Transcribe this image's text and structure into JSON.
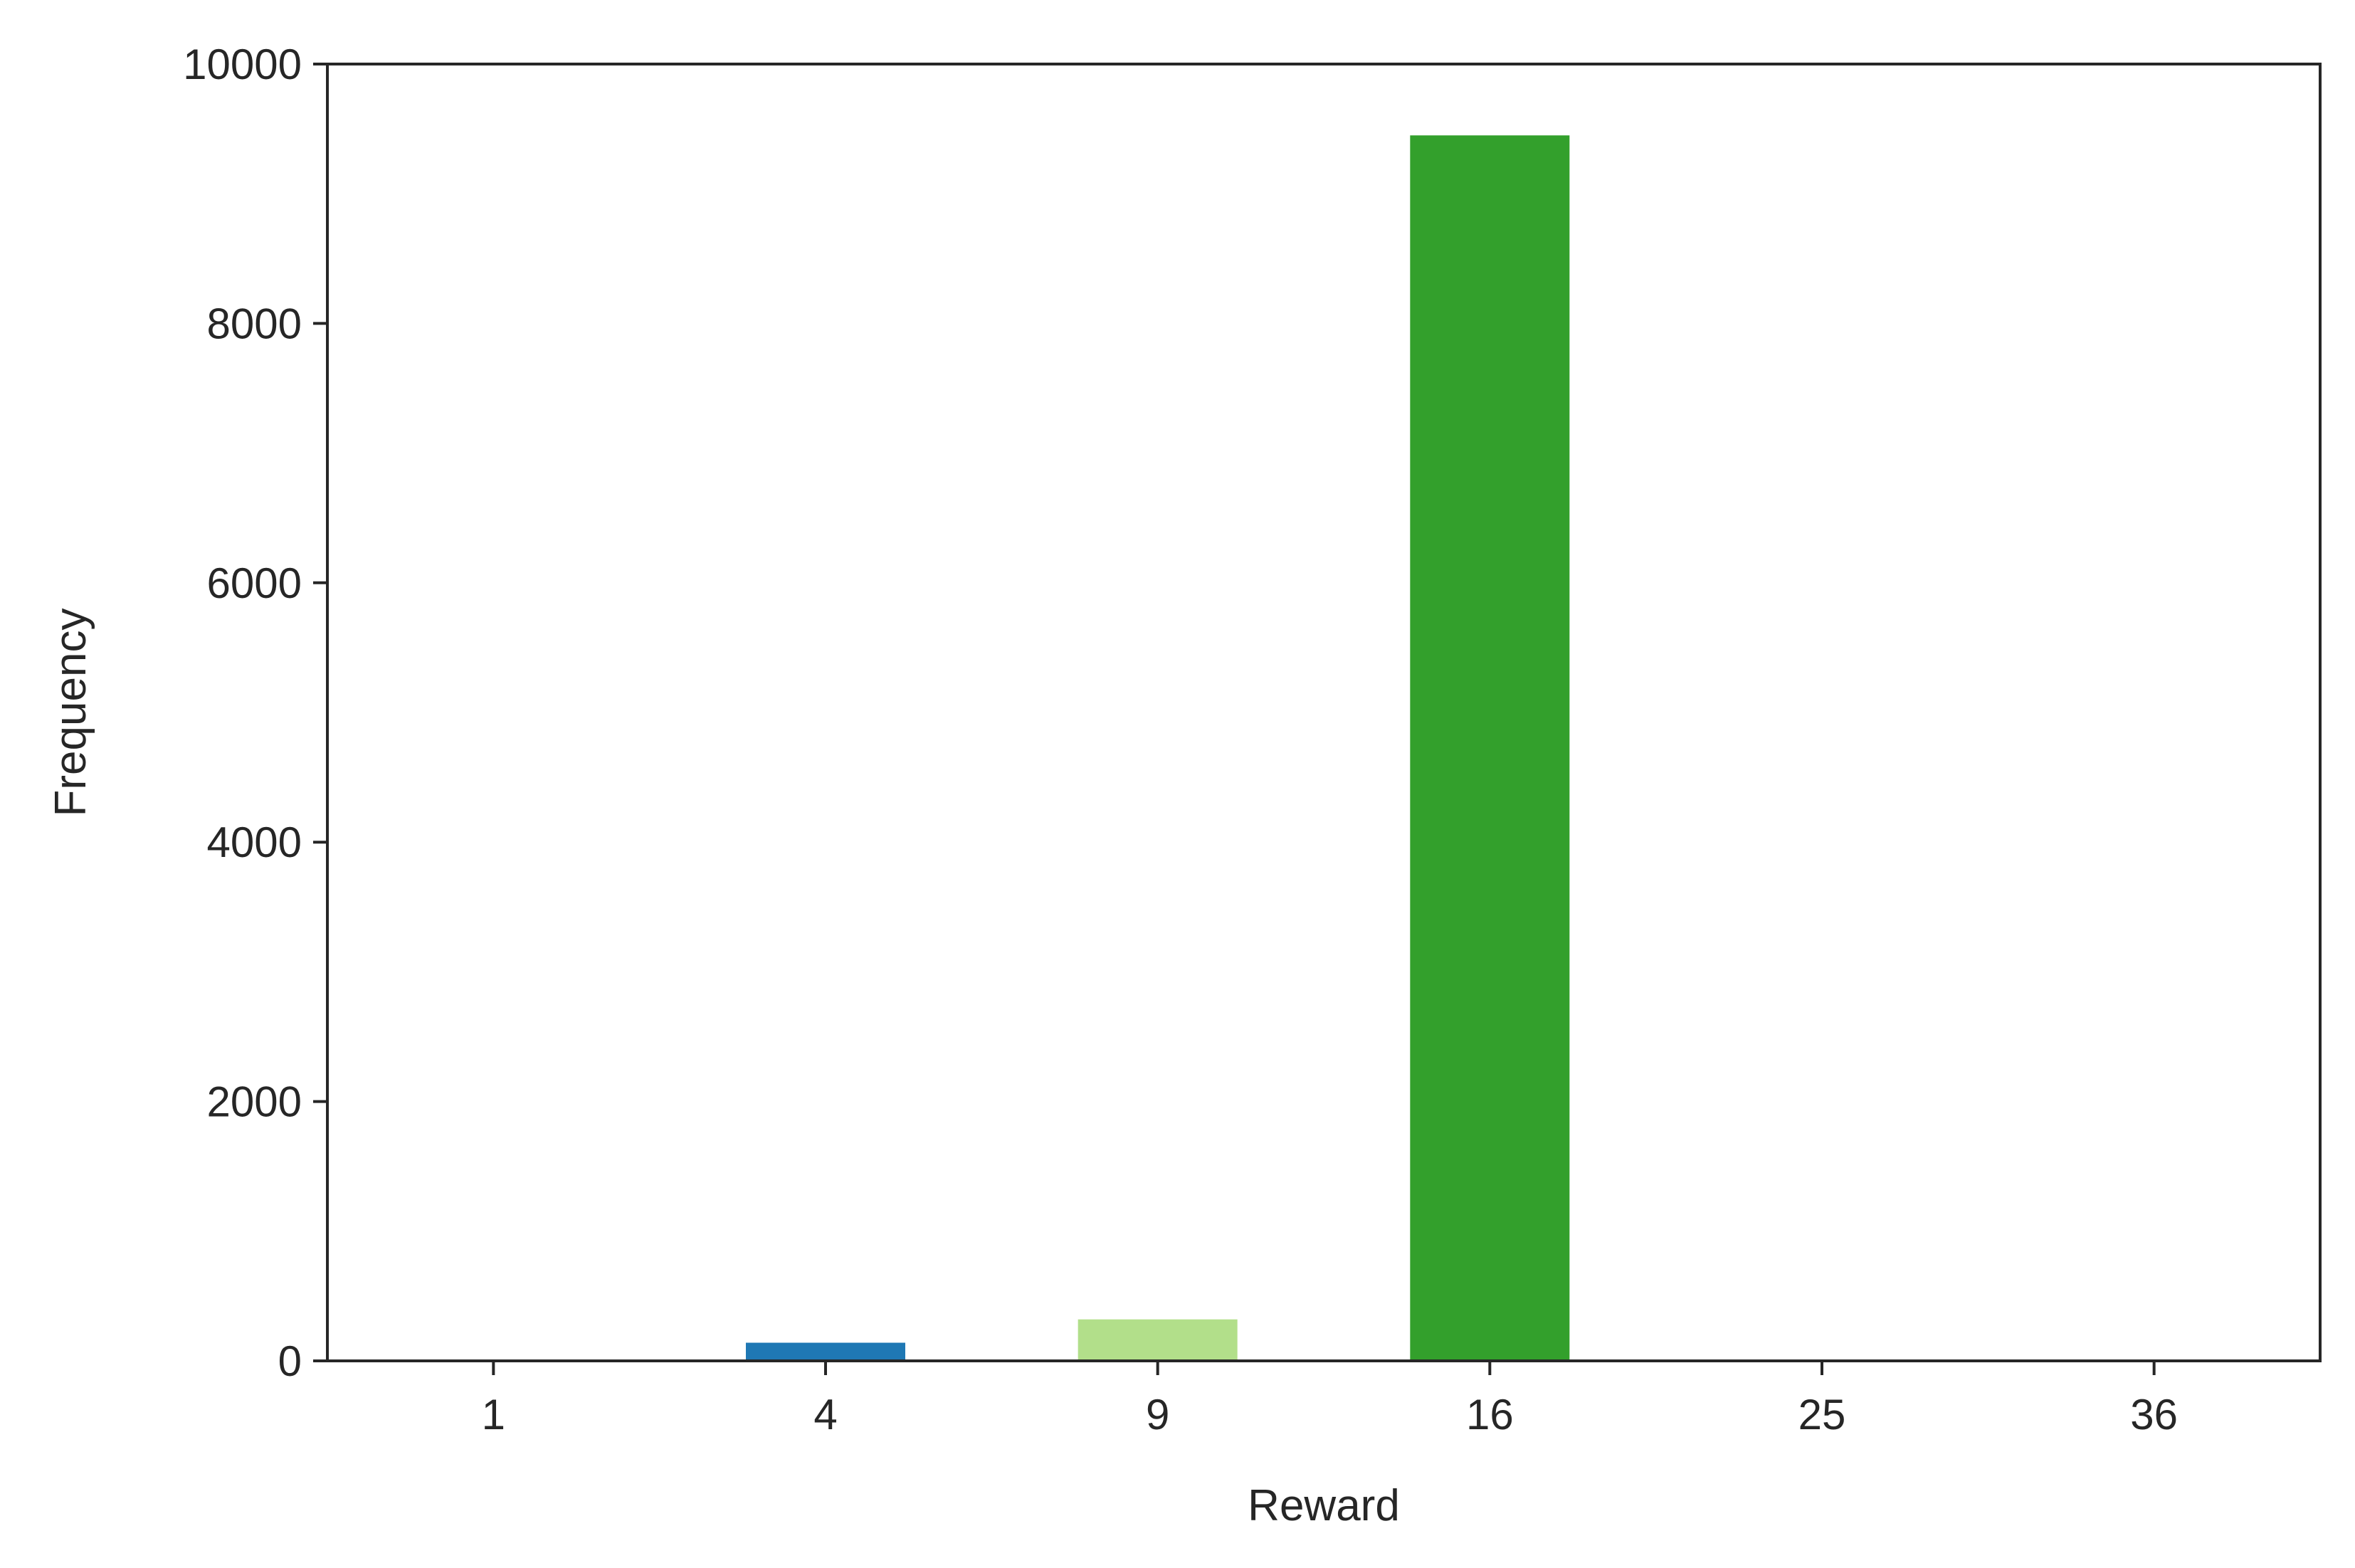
{
  "chart_data": {
    "type": "bar",
    "title": "",
    "xlabel": "Reward",
    "ylabel": "Frequency",
    "categories": [
      "1",
      "4",
      "9",
      "16",
      "25",
      "36"
    ],
    "values": [
      0,
      140,
      320,
      9450,
      0,
      0
    ],
    "colors": [
      "#a6cee3",
      "#1f78b4",
      "#b2df8a",
      "#33a02c",
      "#fb9a99",
      "#e31a1c"
    ],
    "ylim": [
      0,
      10000
    ],
    "yticks": [
      0,
      2000,
      4000,
      6000,
      8000,
      10000
    ],
    "ytick_labels": [
      "0",
      "2000",
      "4000",
      "6000",
      "8000",
      "10000"
    ],
    "grid": false,
    "legend": "none"
  }
}
